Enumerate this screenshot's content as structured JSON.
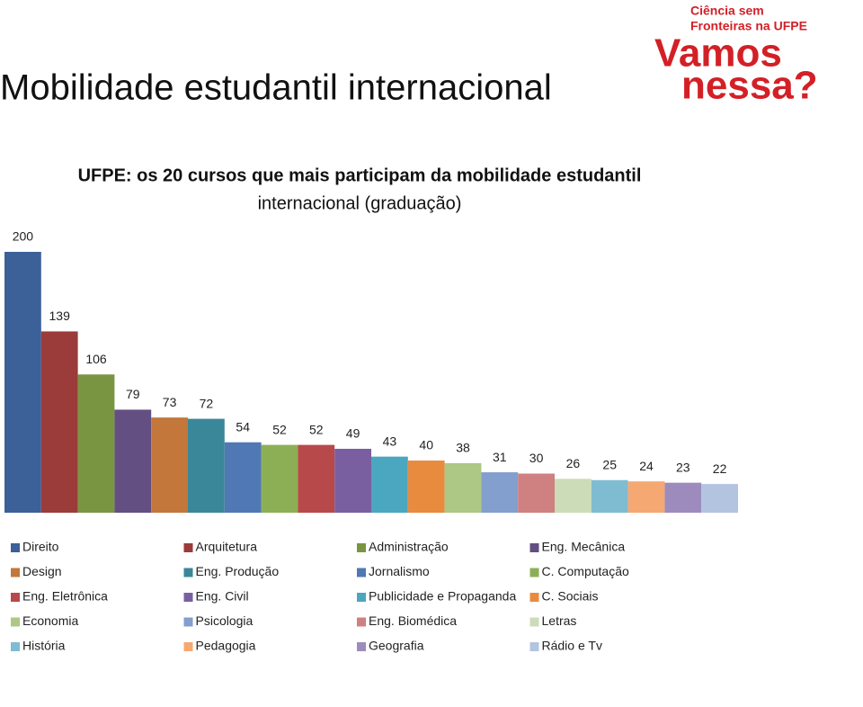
{
  "page": {
    "heading": "Mobilidade estudantil internacional",
    "logo": {
      "top_lines": [
        "Ciência sem",
        "Fronteiras na UFPE"
      ],
      "big_lines": [
        "Vamos",
        "nessa?"
      ]
    }
  },
  "chart_data": {
    "type": "bar",
    "title": [
      "UFPE: os 20 cursos que mais participam da mobilidade estudantil",
      "internacional (graduação)"
    ],
    "legend_columns": 4,
    "series": [
      {
        "name": "Direito",
        "color": "#3C6098",
        "values": [
          200
        ]
      },
      {
        "name": "Arquitetura",
        "color": "#9B3B3A",
        "values": [
          139
        ]
      },
      {
        "name": "Administração",
        "color": "#7A9542",
        "values": [
          106
        ]
      },
      {
        "name": "Eng. Mecânica",
        "color": "#634F82",
        "values": [
          79
        ]
      },
      {
        "name": "Design",
        "color": "#C3773A",
        "values": [
          73
        ]
      },
      {
        "name": "Eng. Produção",
        "color": "#3A8799",
        "values": [
          72
        ]
      },
      {
        "name": "Jornalismo",
        "color": "#4F78B4",
        "values": [
          54
        ]
      },
      {
        "name": "C. Computação",
        "color": "#8CAF55",
        "values": [
          52
        ]
      },
      {
        "name": "Eng. Eletrônica",
        "color": "#B8494A",
        "values": [
          52
        ]
      },
      {
        "name": "Eng. Civil",
        "color": "#7A5FA0",
        "values": [
          49
        ]
      },
      {
        "name": "Publicidade e Propaganda",
        "color": "#4BA6C0",
        "values": [
          43
        ]
      },
      {
        "name": "C. Sociais",
        "color": "#E98B3E",
        "values": [
          40
        ]
      },
      {
        "name": "Economia",
        "color": "#ADC784",
        "values": [
          38
        ]
      },
      {
        "name": "Psicologia",
        "color": "#829FCD",
        "values": [
          31
        ]
      },
      {
        "name": "Eng. Biomédica",
        "color": "#CF8080",
        "values": [
          30
        ]
      },
      {
        "name": "Letras",
        "color": "#CCDCB8",
        "values": [
          26
        ]
      },
      {
        "name": "História",
        "color": "#7FBCD2",
        "values": [
          25
        ]
      },
      {
        "name": "Pedagogia",
        "color": "#F5A872",
        "values": [
          24
        ]
      },
      {
        "name": "Geografia",
        "color": "#9E8BBE",
        "values": [
          23
        ]
      },
      {
        "name": "Rádio e Tv",
        "color": "#B3C4E0",
        "values": [
          22
        ]
      }
    ]
  }
}
